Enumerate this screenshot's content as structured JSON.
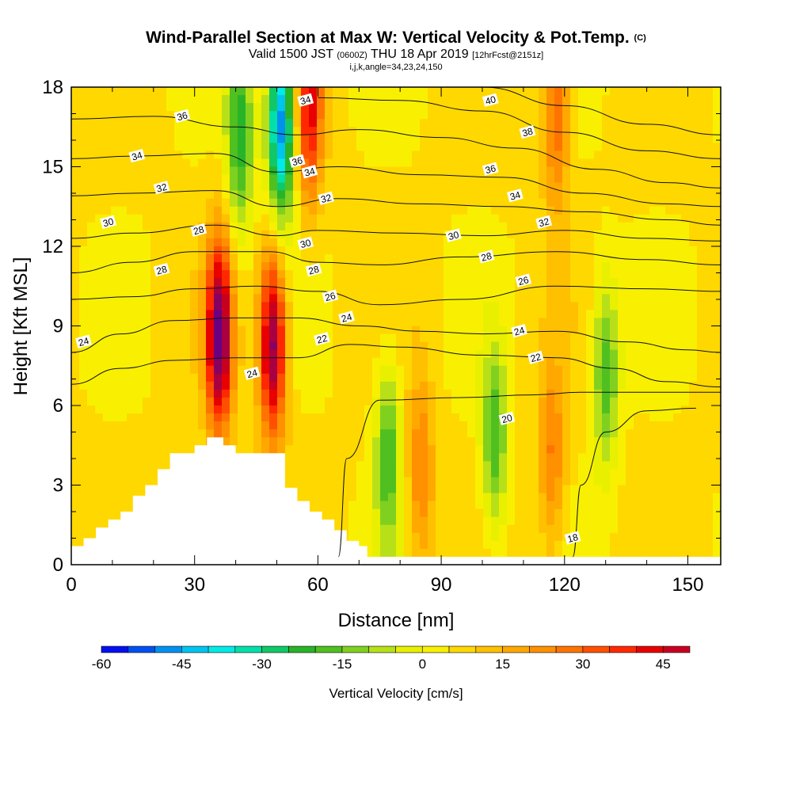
{
  "title": {
    "main": "Wind-Parallel Section at Max W: Vertical Velocity & Pot.Temp.",
    "copyright": "(C)",
    "valid_prefix": "Valid 1500 JST",
    "valid_utc": "(0600Z)",
    "valid_date": "THU 18 Apr 2019",
    "forecast": "[12hrFcst@2151z]",
    "indices": "i,j,k,angle=34,23,24,150"
  },
  "chart_data": {
    "type": "heatmap",
    "xlabel": "Distance [nm]",
    "ylabel": "Height [Kft MSL]",
    "xlim": [
      0,
      158
    ],
    "ylim": [
      0,
      18
    ],
    "x_ticks": [
      0,
      30,
      60,
      90,
      120,
      150
    ],
    "y_ticks": [
      0,
      3,
      6,
      9,
      12,
      15,
      18
    ],
    "field": "Vertical Velocity",
    "colorbar": {
      "label": "Vertical Velocity [cm/s]",
      "tick_values": [
        -60,
        -45,
        -30,
        -15,
        0,
        15,
        30,
        45
      ],
      "tick_labels": [
        "-60",
        "-45",
        "-30",
        "-15",
        "0",
        "15",
        "30",
        "45"
      ],
      "bounds": [
        -60,
        50
      ],
      "step": 5,
      "colors": [
        "#0010f0",
        "#0050f0",
        "#0090f0",
        "#00c4f0",
        "#00eae8",
        "#00e0a8",
        "#10c868",
        "#28b428",
        "#50c020",
        "#80d020",
        "#b8e018",
        "#e8f000",
        "#f8f000",
        "#ffd800",
        "#ffc000",
        "#ffa800",
        "#ff9000",
        "#ff7400",
        "#ff5000",
        "#ff2800",
        "#e80000",
        "#c80020",
        "#a80040",
        "#880060",
        "#6a0080",
        "#500090"
      ]
    },
    "velocity_features": [
      {
        "x": 36,
        "y": 8.6,
        "w": 55,
        "kind": "updraft"
      },
      {
        "x": 49,
        "y": 8.3,
        "w": 52,
        "kind": "updraft"
      },
      {
        "x": 51,
        "y": 16.6,
        "w": -55,
        "kind": "downdraft"
      },
      {
        "x": 58,
        "y": 17.2,
        "w": 35,
        "kind": "updraft"
      },
      {
        "x": 118,
        "y": 17.0,
        "w": 25,
        "kind": "updraft"
      },
      {
        "x": 41,
        "y": 16.2,
        "w": -30,
        "kind": "downdraft"
      },
      {
        "x": 77,
        "y": 4.2,
        "w": -25,
        "kind": "downdraft"
      },
      {
        "x": 103,
        "y": 4.6,
        "w": -25,
        "kind": "downdraft"
      },
      {
        "x": 85,
        "y": 3.5,
        "w": 20,
        "kind": "updraft"
      },
      {
        "x": 117,
        "y": 4.0,
        "w": 20,
        "kind": "updraft"
      },
      {
        "x": 130,
        "y": 7.2,
        "w": -25,
        "kind": "downdraft"
      }
    ],
    "terrain": [
      [
        0,
        0.7
      ],
      [
        3,
        0.7
      ],
      [
        3,
        1.0
      ],
      [
        6,
        1.0
      ],
      [
        6,
        1.4
      ],
      [
        9,
        1.4
      ],
      [
        9,
        1.7
      ],
      [
        12,
        1.7
      ],
      [
        12,
        2.0
      ],
      [
        15,
        2.0
      ],
      [
        15,
        2.6
      ],
      [
        18,
        2.6
      ],
      [
        18,
        3.0
      ],
      [
        21,
        3.0
      ],
      [
        21,
        3.6
      ],
      [
        24,
        3.6
      ],
      [
        24,
        4.2
      ],
      [
        30,
        4.2
      ],
      [
        30,
        4.5
      ],
      [
        33,
        4.5
      ],
      [
        33,
        4.8
      ],
      [
        37,
        4.8
      ],
      [
        37,
        4.5
      ],
      [
        40,
        4.5
      ],
      [
        40,
        4.2
      ],
      [
        52,
        4.2
      ],
      [
        52,
        2.9
      ],
      [
        55,
        2.9
      ],
      [
        55,
        2.4
      ],
      [
        58,
        2.4
      ],
      [
        58,
        2.0
      ],
      [
        61,
        2.0
      ],
      [
        61,
        1.7
      ],
      [
        64,
        1.7
      ],
      [
        64,
        1.3
      ],
      [
        67,
        1.3
      ],
      [
        67,
        0.9
      ],
      [
        70,
        0.9
      ],
      [
        70,
        0.7
      ],
      [
        72,
        0.7
      ],
      [
        72,
        0.3
      ],
      [
        158,
        0.3
      ]
    ],
    "contours": [
      {
        "level": 18,
        "points": [
          [
            122,
            0.3
          ],
          [
            124,
            3.0
          ],
          [
            130,
            5.0
          ],
          [
            140,
            5.8
          ],
          [
            152,
            5.9
          ]
        ]
      },
      {
        "level": 20,
        "points": [
          [
            65,
            0.3
          ],
          [
            67,
            4.0
          ],
          [
            75,
            6.2
          ],
          [
            95,
            6.3
          ],
          [
            112,
            6.4
          ],
          [
            124,
            6.5
          ],
          [
            135,
            6.5
          ],
          [
            158,
            6.5
          ]
        ]
      },
      {
        "level": 22,
        "points": [
          [
            0,
            6.8
          ],
          [
            12,
            7.4
          ],
          [
            25,
            7.7
          ],
          [
            40,
            7.8
          ],
          [
            55,
            7.8
          ],
          [
            68,
            8.3
          ],
          [
            80,
            8.2
          ],
          [
            100,
            7.9
          ],
          [
            118,
            7.8
          ],
          [
            132,
            7.4
          ],
          [
            145,
            6.9
          ],
          [
            158,
            6.7
          ]
        ]
      },
      {
        "level": 24,
        "points": [
          [
            0,
            8.0
          ],
          [
            12,
            8.7
          ],
          [
            25,
            9.2
          ],
          [
            40,
            9.3
          ],
          [
            55,
            9.3
          ],
          [
            70,
            9.0
          ],
          [
            85,
            8.8
          ],
          [
            100,
            8.7
          ],
          [
            118,
            8.8
          ],
          [
            135,
            8.4
          ],
          [
            150,
            8.1
          ],
          [
            158,
            8.0
          ]
        ]
      },
      {
        "level": 26,
        "points": [
          [
            0,
            10.0
          ],
          [
            15,
            10.1
          ],
          [
            30,
            10.4
          ],
          [
            45,
            10.5
          ],
          [
            60,
            10.3
          ],
          [
            75,
            9.8
          ],
          [
            95,
            10.0
          ],
          [
            118,
            10.5
          ],
          [
            140,
            10.4
          ],
          [
            158,
            10.3
          ]
        ]
      },
      {
        "level": 28,
        "points": [
          [
            0,
            11.0
          ],
          [
            15,
            11.4
          ],
          [
            30,
            11.8
          ],
          [
            48,
            11.8
          ],
          [
            60,
            11.4
          ],
          [
            75,
            11.3
          ],
          [
            95,
            11.6
          ],
          [
            118,
            11.8
          ],
          [
            140,
            11.5
          ],
          [
            158,
            11.3
          ]
        ]
      },
      {
        "level": 30,
        "points": [
          [
            0,
            12.3
          ],
          [
            15,
            12.5
          ],
          [
            35,
            12.8
          ],
          [
            50,
            12.4
          ],
          [
            60,
            12.6
          ],
          [
            80,
            12.5
          ],
          [
            100,
            12.4
          ],
          [
            120,
            12.6
          ],
          [
            140,
            12.3
          ],
          [
            158,
            12.2
          ]
        ]
      },
      {
        "level": 32,
        "points": [
          [
            0,
            13.9
          ],
          [
            15,
            14.0
          ],
          [
            35,
            14.1
          ],
          [
            50,
            13.5
          ],
          [
            65,
            13.8
          ],
          [
            85,
            13.6
          ],
          [
            105,
            13.5
          ],
          [
            125,
            13.3
          ],
          [
            145,
            13.0
          ],
          [
            158,
            12.8
          ]
        ]
      },
      {
        "level": 34,
        "points": [
          [
            0,
            15.3
          ],
          [
            15,
            15.4
          ],
          [
            35,
            15.5
          ],
          [
            50,
            14.8
          ],
          [
            65,
            15.0
          ],
          [
            85,
            14.7
          ],
          [
            105,
            14.6
          ],
          [
            125,
            14.0
          ],
          [
            145,
            13.6
          ],
          [
            158,
            13.5
          ]
        ]
      },
      {
        "level": 36,
        "points": [
          [
            0,
            16.8
          ],
          [
            20,
            16.9
          ],
          [
            40,
            16.5
          ],
          [
            55,
            16.2
          ],
          [
            70,
            16.4
          ],
          [
            90,
            16.1
          ],
          [
            108,
            15.7
          ],
          [
            128,
            14.9
          ],
          [
            145,
            14.4
          ],
          [
            158,
            14.2
          ]
        ]
      },
      {
        "level": 38,
        "points": [
          [
            60,
            17.6
          ],
          [
            80,
            17.5
          ],
          [
            100,
            17.1
          ],
          [
            120,
            16.3
          ],
          [
            140,
            15.6
          ],
          [
            158,
            15.3
          ]
        ]
      },
      {
        "level": 40,
        "points": [
          [
            100,
            18.0
          ],
          [
            120,
            17.3
          ],
          [
            140,
            16.6
          ],
          [
            158,
            16.2
          ]
        ]
      }
    ],
    "contour_labels": [
      {
        "text": "24",
        "x": 3,
        "y": 8.4
      },
      {
        "text": "28",
        "x": 22,
        "y": 11.1
      },
      {
        "text": "28",
        "x": 31,
        "y": 12.6
      },
      {
        "text": "30",
        "x": 9,
        "y": 12.9
      },
      {
        "text": "32",
        "x": 22,
        "y": 14.2
      },
      {
        "text": "34",
        "x": 16,
        "y": 15.4
      },
      {
        "text": "36",
        "x": 27,
        "y": 16.9
      },
      {
        "text": "24",
        "x": 44,
        "y": 7.2
      },
      {
        "text": "36",
        "x": 55,
        "y": 15.2
      },
      {
        "text": "34",
        "x": 57,
        "y": 17.5
      },
      {
        "text": "34",
        "x": 58,
        "y": 14.8
      },
      {
        "text": "32",
        "x": 62,
        "y": 13.8
      },
      {
        "text": "30",
        "x": 57,
        "y": 12.1
      },
      {
        "text": "28",
        "x": 59,
        "y": 11.1
      },
      {
        "text": "26",
        "x": 63,
        "y": 10.1
      },
      {
        "text": "24",
        "x": 67,
        "y": 9.3
      },
      {
        "text": "22",
        "x": 61,
        "y": 8.5
      },
      {
        "text": "30",
        "x": 93,
        "y": 12.4
      },
      {
        "text": "28",
        "x": 101,
        "y": 11.6
      },
      {
        "text": "26",
        "x": 110,
        "y": 10.7
      },
      {
        "text": "24",
        "x": 109,
        "y": 8.8
      },
      {
        "text": "22",
        "x": 113,
        "y": 7.8
      },
      {
        "text": "20",
        "x": 106,
        "y": 5.5
      },
      {
        "text": "18",
        "x": 122,
        "y": 1.0
      },
      {
        "text": "32",
        "x": 115,
        "y": 12.9
      },
      {
        "text": "34",
        "x": 108,
        "y": 13.9
      },
      {
        "text": "36",
        "x": 102,
        "y": 14.9
      },
      {
        "text": "38",
        "x": 111,
        "y": 16.3
      },
      {
        "text": "40",
        "x": 102,
        "y": 17.5
      }
    ]
  }
}
